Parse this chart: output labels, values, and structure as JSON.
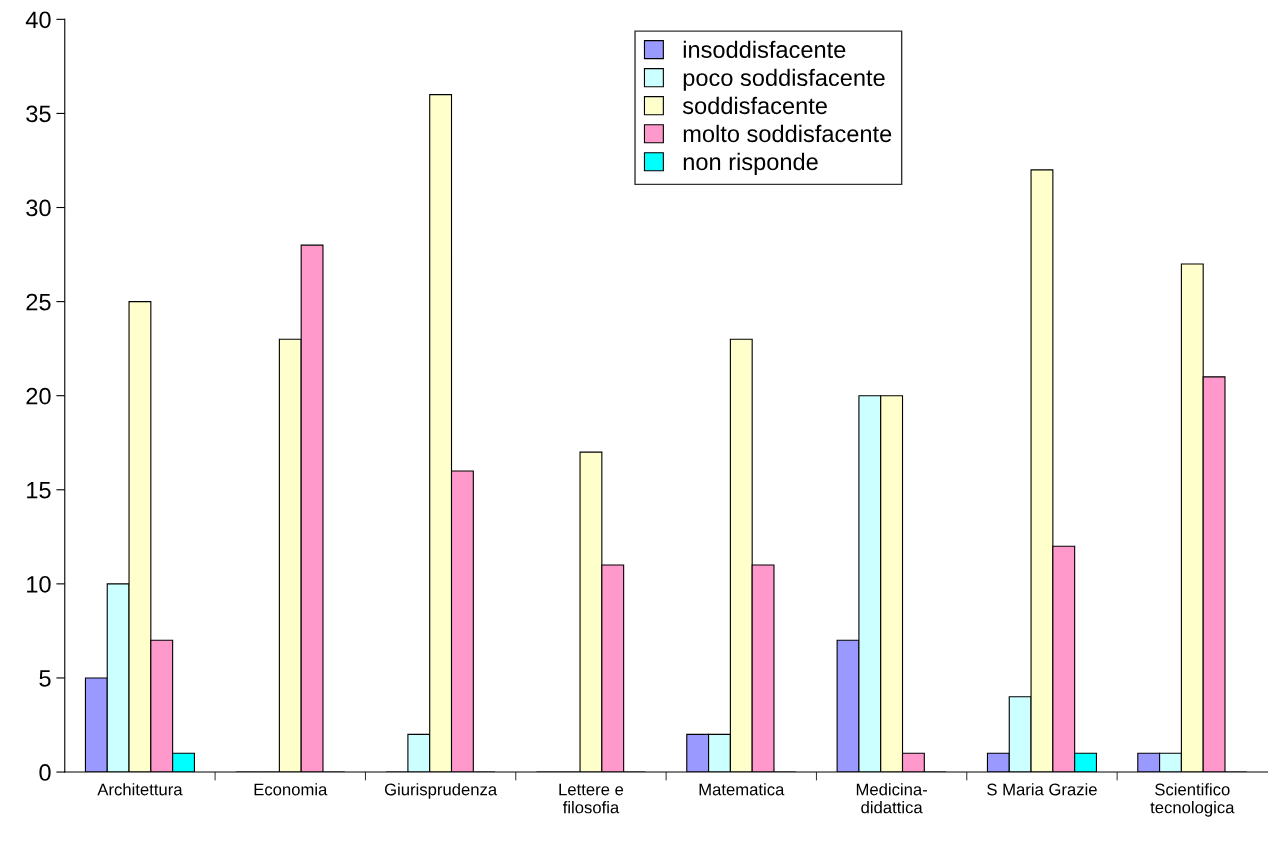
{
  "chart_data": {
    "type": "bar",
    "categories": [
      "Architettura",
      "Economia",
      "Giurisprudenza",
      "Lettere e\nfilosofia",
      "Matematica",
      "Medicina-\ndidattica",
      "S Maria Grazie",
      "Scientifico\ntecnologica"
    ],
    "series": [
      {
        "name": "insoddisfacente",
        "color": "#9999ff",
        "values": [
          5,
          0,
          0,
          0,
          2,
          7,
          1,
          1
        ]
      },
      {
        "name": "poco soddisfacente",
        "color": "#ccffff",
        "values": [
          10,
          0,
          2,
          0,
          2,
          20,
          4,
          1
        ]
      },
      {
        "name": "soddisfacente",
        "color": "#ffffcc",
        "values": [
          25,
          23,
          36,
          17,
          23,
          20,
          32,
          27
        ]
      },
      {
        "name": "molto soddisfacente",
        "color": "#ff99cc",
        "values": [
          7,
          28,
          16,
          11,
          11,
          1,
          12,
          21
        ]
      },
      {
        "name": "non risponde",
        "color": "#00ffff",
        "values": [
          1,
          0,
          0,
          0,
          0,
          0,
          1,
          0
        ]
      }
    ],
    "ylim": [
      0,
      40
    ],
    "yticks": [
      0,
      5,
      10,
      15,
      20,
      25,
      30,
      35,
      40
    ],
    "grid": false,
    "legend": "top"
  }
}
